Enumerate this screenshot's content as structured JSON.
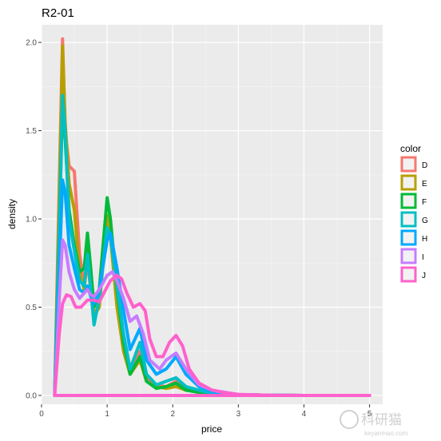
{
  "chart_data": {
    "type": "line",
    "title": "R2-01",
    "xlabel": "price",
    "ylabel": "density",
    "xlim": [
      0,
      5.2
    ],
    "ylim": [
      -0.05,
      2.1
    ],
    "x_ticks": [
      0,
      1,
      2,
      3,
      4,
      5
    ],
    "x_tick_labels": [
      "0",
      "1",
      "2",
      "3",
      "4",
      "5"
    ],
    "y_ticks": [
      0,
      0.5,
      1,
      1.5,
      2
    ],
    "y_tick_labels": [
      "0.0",
      "0.5",
      "1.0",
      "1.5",
      "2.0"
    ],
    "grid": true,
    "legend": {
      "title": "color",
      "position": "right"
    },
    "series": [
      {
        "name": "D",
        "color": "#F8766D",
        "points": [
          [
            0.2,
            0
          ],
          [
            0.22,
            0.35
          ],
          [
            0.27,
            1.2
          ],
          [
            0.32,
            2.02
          ],
          [
            0.36,
            1.5
          ],
          [
            0.42,
            1.3
          ],
          [
            0.5,
            1.27
          ],
          [
            0.58,
            0.8
          ],
          [
            0.65,
            0.62
          ],
          [
            0.7,
            0.75
          ],
          [
            0.75,
            0.6
          ],
          [
            0.8,
            0.45
          ],
          [
            0.88,
            0.52
          ],
          [
            1.0,
            1.02
          ],
          [
            1.05,
            0.9
          ],
          [
            1.15,
            0.55
          ],
          [
            1.25,
            0.3
          ],
          [
            1.35,
            0.15
          ],
          [
            1.5,
            0.25
          ],
          [
            1.6,
            0.1
          ],
          [
            1.75,
            0.06
          ],
          [
            1.9,
            0.05
          ],
          [
            2.05,
            0.08
          ],
          [
            2.2,
            0.04
          ],
          [
            2.5,
            0.02
          ],
          [
            3.0,
            0.005
          ],
          [
            3.5,
            0.001
          ],
          [
            4.0,
            0
          ],
          [
            5.0,
            0
          ]
        ]
      },
      {
        "name": "E",
        "color": "#B79F00",
        "points": [
          [
            0.2,
            0
          ],
          [
            0.22,
            0.3
          ],
          [
            0.27,
            1.1
          ],
          [
            0.32,
            1.98
          ],
          [
            0.36,
            1.55
          ],
          [
            0.42,
            1.2
          ],
          [
            0.5,
            1.05
          ],
          [
            0.58,
            0.7
          ],
          [
            0.65,
            0.6
          ],
          [
            0.7,
            0.82
          ],
          [
            0.75,
            0.62
          ],
          [
            0.8,
            0.45
          ],
          [
            0.88,
            0.5
          ],
          [
            1.0,
            1.02
          ],
          [
            1.05,
            0.9
          ],
          [
            1.15,
            0.5
          ],
          [
            1.25,
            0.25
          ],
          [
            1.35,
            0.12
          ],
          [
            1.5,
            0.2
          ],
          [
            1.6,
            0.08
          ],
          [
            1.75,
            0.05
          ],
          [
            1.9,
            0.04
          ],
          [
            2.05,
            0.05
          ],
          [
            2.2,
            0.03
          ],
          [
            2.5,
            0.02
          ],
          [
            3.0,
            0.005
          ],
          [
            3.5,
            0.001
          ],
          [
            4.0,
            0
          ],
          [
            5.0,
            0
          ]
        ]
      },
      {
        "name": "F",
        "color": "#00BA38",
        "points": [
          [
            0.2,
            0
          ],
          [
            0.22,
            0.28
          ],
          [
            0.27,
            0.95
          ],
          [
            0.32,
            1.65
          ],
          [
            0.36,
            1.45
          ],
          [
            0.42,
            1.05
          ],
          [
            0.5,
            0.85
          ],
          [
            0.58,
            0.7
          ],
          [
            0.65,
            0.72
          ],
          [
            0.7,
            0.92
          ],
          [
            0.75,
            0.72
          ],
          [
            0.8,
            0.5
          ],
          [
            0.88,
            0.6
          ],
          [
            1.0,
            1.12
          ],
          [
            1.05,
            1.0
          ],
          [
            1.15,
            0.6
          ],
          [
            1.25,
            0.3
          ],
          [
            1.35,
            0.12
          ],
          [
            1.5,
            0.22
          ],
          [
            1.6,
            0.08
          ],
          [
            1.75,
            0.04
          ],
          [
            1.9,
            0.05
          ],
          [
            2.05,
            0.07
          ],
          [
            2.2,
            0.03
          ],
          [
            2.5,
            0.01
          ],
          [
            3.0,
            0.003
          ],
          [
            3.5,
            0.001
          ],
          [
            4.0,
            0
          ],
          [
            5.0,
            0
          ]
        ]
      },
      {
        "name": "G",
        "color": "#00BFC4",
        "points": [
          [
            0.2,
            0
          ],
          [
            0.22,
            0.25
          ],
          [
            0.27,
            0.9
          ],
          [
            0.32,
            1.7
          ],
          [
            0.36,
            1.5
          ],
          [
            0.42,
            1.0
          ],
          [
            0.5,
            0.82
          ],
          [
            0.58,
            0.65
          ],
          [
            0.65,
            0.62
          ],
          [
            0.7,
            0.8
          ],
          [
            0.75,
            0.6
          ],
          [
            0.8,
            0.4
          ],
          [
            0.88,
            0.55
          ],
          [
            1.0,
            0.95
          ],
          [
            1.05,
            0.9
          ],
          [
            1.15,
            0.62
          ],
          [
            1.25,
            0.35
          ],
          [
            1.35,
            0.15
          ],
          [
            1.5,
            0.3
          ],
          [
            1.6,
            0.12
          ],
          [
            1.75,
            0.06
          ],
          [
            1.9,
            0.08
          ],
          [
            2.05,
            0.1
          ],
          [
            2.2,
            0.05
          ],
          [
            2.5,
            0.02
          ],
          [
            3.0,
            0.005
          ],
          [
            3.5,
            0.001
          ],
          [
            4.0,
            0
          ],
          [
            5.0,
            0
          ]
        ]
      },
      {
        "name": "H",
        "color": "#00A9FF",
        "points": [
          [
            0.2,
            0
          ],
          [
            0.22,
            0.2
          ],
          [
            0.27,
            0.7
          ],
          [
            0.32,
            1.22
          ],
          [
            0.36,
            1.15
          ],
          [
            0.42,
            0.85
          ],
          [
            0.5,
            0.72
          ],
          [
            0.58,
            0.6
          ],
          [
            0.65,
            0.58
          ],
          [
            0.7,
            0.62
          ],
          [
            0.75,
            0.56
          ],
          [
            0.8,
            0.52
          ],
          [
            0.88,
            0.6
          ],
          [
            1.0,
            0.88
          ],
          [
            1.05,
            0.92
          ],
          [
            1.15,
            0.72
          ],
          [
            1.25,
            0.48
          ],
          [
            1.35,
            0.26
          ],
          [
            1.5,
            0.38
          ],
          [
            1.6,
            0.2
          ],
          [
            1.75,
            0.12
          ],
          [
            1.9,
            0.15
          ],
          [
            2.05,
            0.22
          ],
          [
            2.2,
            0.12
          ],
          [
            2.4,
            0.05
          ],
          [
            2.6,
            0.02
          ],
          [
            3.0,
            0.005
          ],
          [
            3.5,
            0.001
          ],
          [
            4.0,
            0
          ],
          [
            5.0,
            0
          ]
        ]
      },
      {
        "name": "I",
        "color": "#C77CFF",
        "points": [
          [
            0.2,
            0
          ],
          [
            0.22,
            0.15
          ],
          [
            0.27,
            0.55
          ],
          [
            0.32,
            0.88
          ],
          [
            0.36,
            0.85
          ],
          [
            0.42,
            0.7
          ],
          [
            0.5,
            0.6
          ],
          [
            0.58,
            0.55
          ],
          [
            0.65,
            0.58
          ],
          [
            0.7,
            0.6
          ],
          [
            0.75,
            0.57
          ],
          [
            0.8,
            0.56
          ],
          [
            0.88,
            0.6
          ],
          [
            1.0,
            0.68
          ],
          [
            1.08,
            0.7
          ],
          [
            1.15,
            0.65
          ],
          [
            1.25,
            0.55
          ],
          [
            1.35,
            0.42
          ],
          [
            1.45,
            0.45
          ],
          [
            1.55,
            0.35
          ],
          [
            1.65,
            0.2
          ],
          [
            1.8,
            0.15
          ],
          [
            1.9,
            0.2
          ],
          [
            2.05,
            0.24
          ],
          [
            2.2,
            0.15
          ],
          [
            2.4,
            0.06
          ],
          [
            2.6,
            0.03
          ],
          [
            3.0,
            0.005
          ],
          [
            3.5,
            0.001
          ],
          [
            4.0,
            0
          ],
          [
            5.0,
            0
          ]
        ]
      },
      {
        "name": "J",
        "color": "#FF61CC",
        "points": [
          [
            0.2,
            0
          ],
          [
            0.22,
            0.1
          ],
          [
            0.27,
            0.35
          ],
          [
            0.32,
            0.52
          ],
          [
            0.38,
            0.57
          ],
          [
            0.45,
            0.56
          ],
          [
            0.52,
            0.5
          ],
          [
            0.6,
            0.5
          ],
          [
            0.7,
            0.54
          ],
          [
            0.8,
            0.54
          ],
          [
            0.88,
            0.53
          ],
          [
            0.95,
            0.58
          ],
          [
            1.05,
            0.65
          ],
          [
            1.15,
            0.68
          ],
          [
            1.22,
            0.66
          ],
          [
            1.3,
            0.58
          ],
          [
            1.4,
            0.5
          ],
          [
            1.5,
            0.52
          ],
          [
            1.58,
            0.48
          ],
          [
            1.65,
            0.32
          ],
          [
            1.75,
            0.22
          ],
          [
            1.85,
            0.22
          ],
          [
            1.95,
            0.3
          ],
          [
            2.05,
            0.34
          ],
          [
            2.15,
            0.28
          ],
          [
            2.25,
            0.15
          ],
          [
            2.4,
            0.07
          ],
          [
            2.6,
            0.03
          ],
          [
            2.8,
            0.015
          ],
          [
            3.0,
            0.006
          ],
          [
            3.5,
            0.001
          ],
          [
            4.0,
            0
          ],
          [
            5.0,
            0
          ]
        ]
      }
    ]
  },
  "watermark": {
    "text": "科研猫",
    "subtext": "keyanmao.com"
  }
}
